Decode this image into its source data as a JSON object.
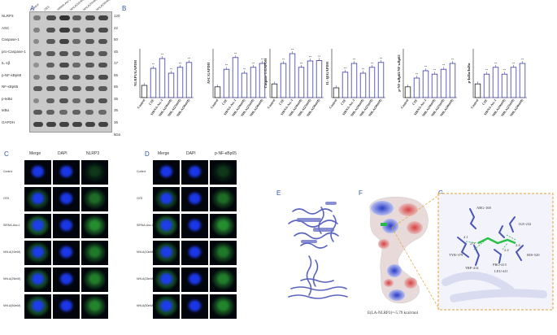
{
  "panels": {
    "A": "A",
    "B": "B",
    "C": "C",
    "D": "D",
    "E": "E",
    "F": "F",
    "G": "G"
  },
  "lanes": [
    "Control",
    "CES",
    "SIRNA-Asc-1",
    "NHLA(10mM)",
    "NHLA(25mM)",
    "NHLA(50mM)"
  ],
  "blot": {
    "rows": [
      {
        "label": "NLRP3",
        "kda": "120"
      },
      {
        "label": "ASC",
        "kda": "22"
      },
      {
        "label": "Caspase-1",
        "kda": "50"
      },
      {
        "label": "pro-Caspase-1",
        "kda": "45"
      },
      {
        "label": "IL-1β",
        "kda": "17"
      },
      {
        "label": "p-NF-κBp65",
        "kda": "65"
      },
      {
        "label": "NF-κBp65",
        "kda": "65"
      },
      {
        "label": "p-IκBα",
        "kda": "35"
      },
      {
        "label": "IκBα",
        "kda": "35"
      },
      {
        "label": "GAPDH",
        "kda": "36"
      }
    ],
    "kda_unit": "kDa"
  },
  "chart_data": [
    {
      "type": "bar",
      "ylabel": "NLRP3/GAPDH",
      "categories": [
        "Control",
        "CSE",
        "SIRNA-Asc-1",
        "NHLA(10mM)",
        "NHLA(25mM)",
        "NHLA(50mM)"
      ],
      "values": [
        0.25,
        0.6,
        0.8,
        0.5,
        0.62,
        0.72
      ],
      "ylim": [
        0,
        1
      ]
    },
    {
      "type": "bar",
      "ylabel": "ASC/GAPDH",
      "categories": [
        "Control",
        "CSE",
        "SIRNA-Asc-1",
        "NHLA(10mM)",
        "NHLA(25mM)",
        "NHLA(50mM)"
      ],
      "values": [
        0.22,
        0.58,
        0.82,
        0.5,
        0.62,
        0.7
      ],
      "ylim": [
        0,
        1
      ]
    },
    {
      "type": "bar",
      "ylabel": "Caspase-1/GAPDH",
      "categories": [
        "Control",
        "CSE",
        "SIRNA-Asc-1",
        "NHLA(10mM)",
        "NHLA(25mM)",
        "NHLA(50mM)"
      ],
      "values": [
        0.28,
        0.7,
        0.9,
        0.62,
        0.75,
        0.76
      ],
      "ylim": [
        0,
        1
      ]
    },
    {
      "type": "bar",
      "ylabel": "IL-1β/GAPDH",
      "categories": [
        "Control",
        "CSE",
        "SIRNA-Asc-1",
        "NHLA(10mM)",
        "NHLA(25mM)",
        "NHLA(50mM)"
      ],
      "values": [
        0.2,
        0.52,
        0.7,
        0.5,
        0.62,
        0.72
      ],
      "ylim": [
        0,
        1
      ]
    },
    {
      "type": "bar",
      "ylabel": "p-NF-κBp65/NF-κBp65",
      "categories": [
        "Control",
        "CSE",
        "SIRNA-Asc-1",
        "NHLA(10mM)",
        "NHLA(25mM)",
        "NHLA(50mM)"
      ],
      "values": [
        0.22,
        0.4,
        0.55,
        0.48,
        0.58,
        0.7
      ],
      "ylim": [
        0,
        1
      ]
    },
    {
      "type": "bar",
      "ylabel": "p-IκBα/IκBα",
      "categories": [
        "Control",
        "CSE",
        "SIRNA-Asc-1",
        "NHLA(10mM)",
        "NHLA(25mM)",
        "NHLA(50mM)"
      ],
      "values": [
        0.28,
        0.48,
        0.62,
        0.48,
        0.62,
        0.7
      ],
      "ylim": [
        0,
        1
      ]
    }
  ],
  "annotation": "**",
  "micro_C": {
    "headers": [
      "Merge",
      "DAPI",
      "NLRP3"
    ],
    "rows": [
      "Control",
      "CES",
      "SIRNA-Asc-1",
      "NHLA(10mM)",
      "NHLA(25mM)",
      "NHLA(50mM)"
    ]
  },
  "micro_D": {
    "headers": [
      "Merge",
      "DAPI",
      "p-NF-κBp65"
    ],
    "rows": [
      "Control",
      "CES",
      "SIRNA-Asc-1",
      "NHLA(10mM)",
      "NHLA(25mM)",
      "NHLA(50mM)"
    ]
  },
  "residues": [
    "ARG-168",
    "ILE-232",
    "TYR-379",
    "TRP-414",
    "PRO-415",
    "LEU-411",
    "HIS-520"
  ],
  "distances": [
    "2.1",
    "2.0",
    "2.4",
    "2.2"
  ],
  "energy": "E(LA-NLRP3)=-5.79 kcal/mol",
  "colors": {
    "bar": "#3a3aa8",
    "merge_green": "#1f8a2a",
    "dapi_blue": "#1b3cff",
    "protein": "#6a74c8"
  }
}
